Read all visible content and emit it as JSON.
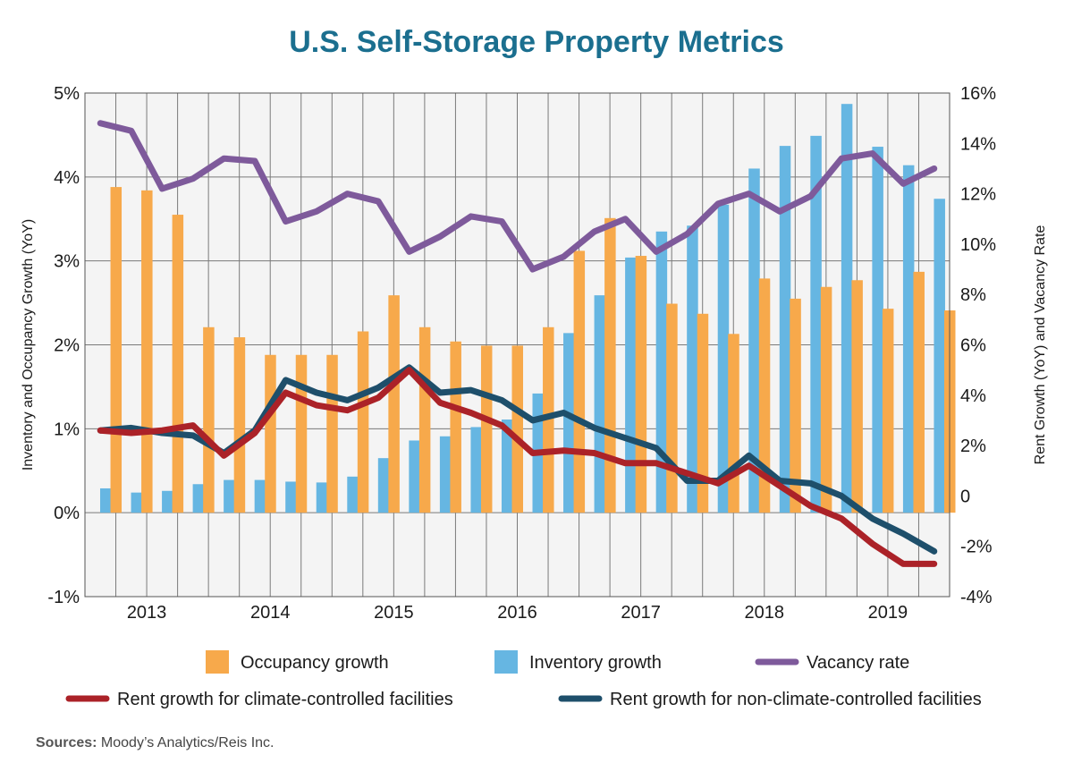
{
  "title": "U.S. Self-Storage Property Metrics",
  "source_label": "Sources:",
  "source_text": "Moody’s Analytics/Reis Inc.",
  "colors": {
    "occupancy": "#f7a94b",
    "inventory": "#66b6e2",
    "vacancy": "#7e5a9b",
    "rent_climate": "#ab2228",
    "rent_non_climate": "#1e4f6b",
    "grid": "#7a7a7a",
    "plot_bg": "#f4f4f4"
  },
  "chart_data": {
    "type": "bar",
    "x_tick_labels": [
      "2013",
      "2014",
      "2015",
      "2016",
      "2017",
      "2018",
      "2019"
    ],
    "y_left_label": "Inventory and Occupancy Growth (YoY)",
    "y_right_label": "Rent Growth (YoY) and Vacancy Rate",
    "y_left_ticks": [
      "5%",
      "4%",
      "3%",
      "2%",
      "1%",
      "0%",
      "-1%"
    ],
    "y_right_ticks": [
      "16%",
      "14%",
      "12%",
      "10%",
      "8%",
      "6%",
      "4%",
      "2%",
      "0",
      "-2%",
      "-4%"
    ],
    "ylim_left": [
      -1,
      5
    ],
    "ylim_right": [
      -4,
      16
    ],
    "grid": true,
    "legend_position": "bottom",
    "num_periods": 28,
    "series": [
      {
        "name": "Occupancy growth",
        "type": "bar",
        "axis": "left",
        "values": [
          3.88,
          3.84,
          3.55,
          2.21,
          2.09,
          1.88,
          1.88,
          1.88,
          2.16,
          2.59,
          2.21,
          2.04,
          1.99,
          1.99,
          2.21,
          3.12,
          3.51,
          3.06,
          2.49,
          2.37,
          2.13,
          2.79,
          2.55,
          2.69,
          2.77,
          2.43,
          2.87,
          2.41
        ]
      },
      {
        "name": "Inventory growth",
        "type": "bar",
        "axis": "left",
        "values": [
          0.29,
          0.24,
          0.26,
          0.34,
          0.39,
          0.39,
          0.37,
          0.36,
          0.43,
          0.65,
          0.86,
          0.91,
          1.02,
          1.11,
          1.42,
          2.14,
          2.59,
          3.04,
          3.35,
          3.42,
          3.67,
          4.1,
          4.37,
          4.49,
          4.87,
          4.36,
          4.14,
          3.74
        ]
      },
      {
        "name": "Vacancy rate",
        "type": "line",
        "axis": "right",
        "values": [
          14.8,
          14.5,
          12.2,
          12.6,
          13.4,
          13.3,
          10.9,
          11.3,
          12.0,
          11.7,
          9.7,
          10.3,
          11.1,
          10.9,
          9.0,
          9.5,
          10.5,
          11.0,
          9.7,
          10.4,
          11.6,
          12.0,
          11.3,
          11.9,
          13.4,
          13.6,
          12.4,
          13.0
        ]
      },
      {
        "name": "Rent growth for climate-controlled facilities",
        "type": "line",
        "axis": "right",
        "values": [
          2.6,
          2.5,
          2.6,
          2.8,
          1.6,
          2.5,
          4.1,
          3.6,
          3.4,
          3.9,
          5.0,
          3.7,
          3.3,
          2.8,
          1.7,
          1.8,
          1.7,
          1.3,
          1.3,
          0.9,
          0.5,
          1.2,
          0.4,
          -0.4,
          -0.9,
          -1.9,
          -2.7,
          -2.7
        ]
      },
      {
        "name": "Rent growth for non-climate-controlled facilities",
        "type": "line",
        "axis": "right",
        "values": [
          2.6,
          2.7,
          2.5,
          2.4,
          1.7,
          2.6,
          4.6,
          4.1,
          3.8,
          4.3,
          5.1,
          4.1,
          4.2,
          3.8,
          3.0,
          3.3,
          2.7,
          2.3,
          1.9,
          0.6,
          0.6,
          1.6,
          0.6,
          0.5,
          0.0,
          -0.9,
          -1.5,
          -2.2
        ]
      }
    ]
  }
}
